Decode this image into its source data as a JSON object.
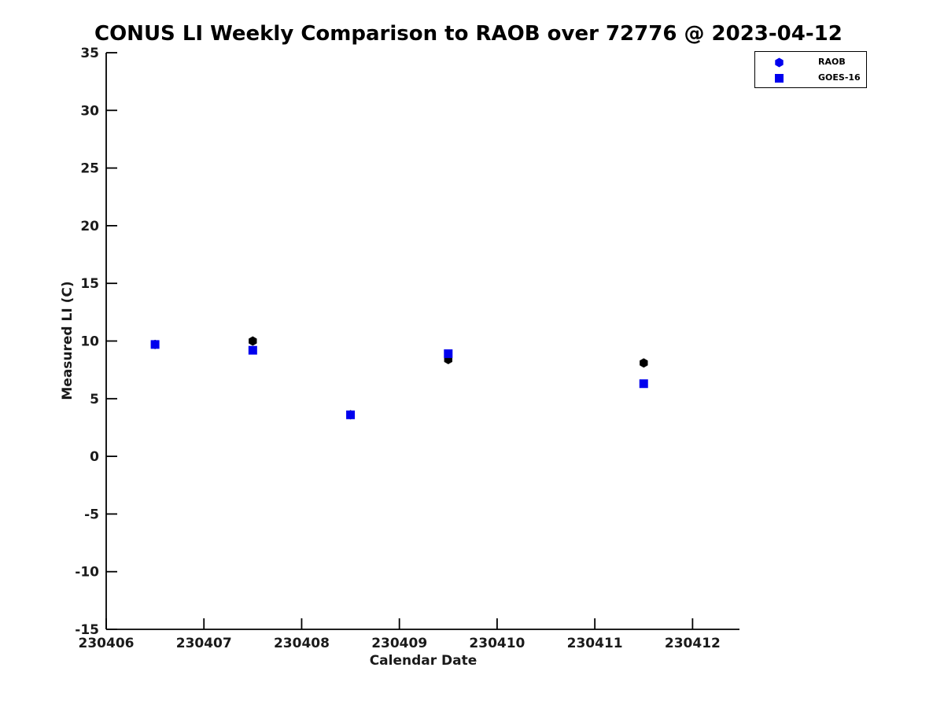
{
  "figure": {
    "background": "#ffffff"
  },
  "chart_data": {
    "type": "scatter",
    "title": "CONUS LI Weekly Comparison to RAOB over 72776 @ 2023-04-12",
    "xlabel": "Calendar Date",
    "ylabel": "Measured LI (C)",
    "xlim": [
      230406,
      230412.48
    ],
    "ylim": [
      -15,
      35
    ],
    "x_ticks": [
      "230406",
      "230407",
      "230408",
      "230409",
      "230410",
      "230411",
      "230412"
    ],
    "y_ticks": [
      "35",
      "30",
      "25",
      "20",
      "15",
      "10",
      "5",
      "0",
      "-5",
      "-10",
      "-15"
    ],
    "grid": false,
    "axis_color": "#000000",
    "tick_label_color": "#1a1a1a",
    "legend": {
      "position": "upper right",
      "entries": [
        {
          "label": "RAOB",
          "marker": "hexagon",
          "color": "#0000EE"
        },
        {
          "label": "GOES-16",
          "marker": "square",
          "color": "#0000EE"
        }
      ]
    },
    "series": [
      {
        "name": "RAOB",
        "marker": "hexagon",
        "color": "#000000",
        "x": [
          230406.5,
          230407.5,
          230408.5,
          230409.5,
          230411.5
        ],
        "y": [
          9.7,
          10.0,
          3.6,
          8.4,
          8.1
        ]
      },
      {
        "name": "GOES-16",
        "marker": "square",
        "color": "#0000EE",
        "x": [
          230406.5,
          230407.5,
          230408.5,
          230409.5,
          230411.5
        ],
        "y": [
          9.7,
          9.2,
          3.6,
          8.9,
          6.3
        ]
      }
    ]
  }
}
